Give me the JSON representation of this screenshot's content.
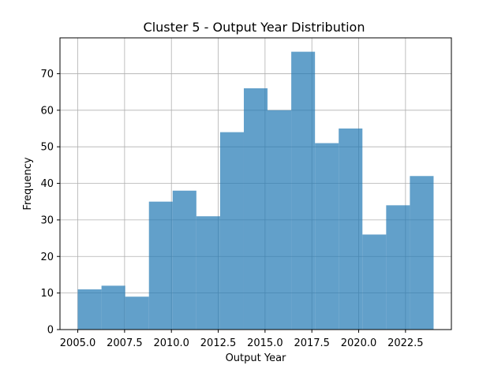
{
  "chart_data": {
    "type": "bar",
    "title": "Cluster 5 - Output Year Distribution",
    "xlabel": "Output Year",
    "ylabel": "Frequency",
    "bin_edges": [
      2005.0,
      2006.267,
      2007.533,
      2008.8,
      2010.067,
      2011.333,
      2012.6,
      2013.867,
      2015.133,
      2016.4,
      2017.667,
      2018.933,
      2020.2,
      2021.467,
      2022.733,
      2024.0
    ],
    "values": [
      11,
      12,
      9,
      35,
      38,
      31,
      54,
      66,
      60,
      76,
      51,
      55,
      26,
      34,
      42
    ],
    "xlim": [
      2004.05,
      2024.95
    ],
    "ylim": [
      0,
      79.8
    ],
    "xticks": [
      2005.0,
      2007.5,
      2010.0,
      2012.5,
      2015.0,
      2017.5,
      2020.0,
      2022.5
    ],
    "xtick_labels": [
      "2005.0",
      "2007.5",
      "2010.0",
      "2012.5",
      "2015.0",
      "2017.5",
      "2020.0",
      "2022.5"
    ],
    "yticks": [
      0,
      10,
      20,
      30,
      40,
      50,
      60,
      70
    ],
    "ytick_labels": [
      "0",
      "10",
      "20",
      "30",
      "40",
      "50",
      "60",
      "70"
    ],
    "grid": true,
    "bar_color": "#1f77b4",
    "bar_alpha": 0.7
  }
}
